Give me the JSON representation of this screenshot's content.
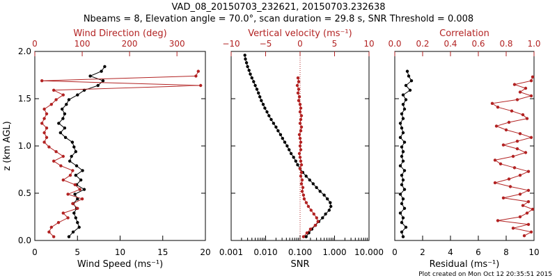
{
  "title_line1": "VAD_08_20150703_232621, 20150703.232638",
  "title_line2": "Nbeams = 8, Elevation angle = 70.0°, scan duration = 29.8 s, SNR Threshold = 0.008",
  "footer": "Plot created on Mon Oct 12 20:35:51 2015",
  "colors": {
    "black": "#000000",
    "red": "#b22222"
  },
  "chart_data": [
    {
      "type": "line",
      "panel": "wind",
      "title": "Wind Direction (deg)",
      "xlabel": "Wind Speed (ms⁻¹)",
      "ylabel": "z (km AGL)",
      "xlim": [
        0,
        20
      ],
      "xlim_top": [
        0,
        360
      ],
      "ylim": [
        0,
        2
      ],
      "xticks": [
        "0",
        "5",
        "10",
        "15",
        "20"
      ],
      "xticks_top": [
        "0",
        "100",
        "200",
        "300"
      ],
      "yticks": [
        "0.0",
        "0.5",
        "1.0",
        "1.5",
        "2.0"
      ],
      "series": [
        {
          "name": "Wind Speed",
          "axis": "bottom",
          "color": "black",
          "z": [
            0.04,
            0.09,
            0.14,
            0.19,
            0.24,
            0.29,
            0.34,
            0.39,
            0.44,
            0.49,
            0.54,
            0.59,
            0.64,
            0.69,
            0.74,
            0.79,
            0.84,
            0.89,
            0.94,
            0.99,
            1.04,
            1.09,
            1.14,
            1.19,
            1.24,
            1.29,
            1.34,
            1.39,
            1.44,
            1.49,
            1.54,
            1.59,
            1.64,
            1.69,
            1.74,
            1.79,
            1.84
          ],
          "values": [
            4.0,
            4.5,
            5.2,
            5.0,
            4.8,
            4.6,
            4.9,
            4.5,
            5.0,
            4.7,
            5.8,
            4.9,
            5.4,
            4.8,
            5.6,
            4.9,
            4.1,
            4.3,
            4.8,
            4.6,
            4.4,
            3.6,
            3.0,
            3.5,
            2.8,
            3.3,
            3.5,
            3.2,
            3.7,
            4.0,
            5.0,
            5.8,
            7.4,
            8.0,
            6.5,
            7.8,
            8.2
          ]
        },
        {
          "name": "Wind Direction",
          "axis": "top",
          "color": "red",
          "z": [
            0.04,
            0.09,
            0.14,
            0.19,
            0.24,
            0.29,
            0.34,
            0.39,
            0.44,
            0.49,
            0.54,
            0.59,
            0.64,
            0.69,
            0.74,
            0.79,
            0.84,
            0.89,
            0.94,
            0.99,
            1.04,
            1.09,
            1.14,
            1.19,
            1.24,
            1.29,
            1.34,
            1.39,
            1.44,
            1.49,
            1.54,
            1.59,
            1.64,
            1.69,
            1.74,
            1.79
          ],
          "values": [
            40,
            30,
            35,
            50,
            70,
            60,
            90,
            80,
            100,
            70,
            95,
            85,
            60,
            75,
            80,
            55,
            40,
            60,
            45,
            30,
            20,
            25,
            20,
            25,
            15,
            20,
            25,
            20,
            35,
            45,
            60,
            40,
            350,
            15,
            340,
            345
          ]
        }
      ]
    },
    {
      "type": "line",
      "panel": "snr",
      "title": "Vertical velocity (ms⁻¹)",
      "xlabel": "SNR",
      "xscale": "log",
      "xlim": [
        0.001,
        10
      ],
      "xlim_top": [
        -10,
        10
      ],
      "ylim": [
        0,
        2
      ],
      "xticks": [
        "0.001",
        "0.010",
        "0.100",
        "1.000",
        "10.000"
      ],
      "xticks_top": [
        "−10",
        "−5",
        "0",
        "5",
        "10"
      ],
      "series": [
        {
          "name": "SNR",
          "axis": "bottom",
          "color": "black",
          "z": [
            0.04,
            0.08,
            0.12,
            0.16,
            0.2,
            0.24,
            0.28,
            0.32,
            0.36,
            0.4,
            0.44,
            0.48,
            0.52,
            0.56,
            0.6,
            0.64,
            0.68,
            0.72,
            0.76,
            0.8,
            0.84,
            0.88,
            0.92,
            0.96,
            1.0,
            1.04,
            1.08,
            1.12,
            1.16,
            1.2,
            1.24,
            1.28,
            1.32,
            1.36,
            1.4,
            1.44,
            1.48,
            1.52,
            1.56,
            1.6,
            1.64,
            1.68,
            1.72,
            1.76,
            1.8,
            1.84,
            1.88,
            1.92,
            1.96
          ],
          "values": [
            0.15,
            0.18,
            0.22,
            0.28,
            0.35,
            0.45,
            0.55,
            0.7,
            0.78,
            0.75,
            0.62,
            0.5,
            0.38,
            0.3,
            0.24,
            0.19,
            0.15,
            0.12,
            0.1,
            0.085,
            0.075,
            0.065,
            0.055,
            0.048,
            0.042,
            0.036,
            0.031,
            0.027,
            0.023,
            0.02,
            0.017,
            0.0145,
            0.0125,
            0.011,
            0.0095,
            0.0085,
            0.0075,
            0.0068,
            0.0062,
            0.0056,
            0.005,
            0.0045,
            0.004,
            0.0036,
            0.0033,
            0.003,
            0.0028,
            0.0026,
            0.0025
          ]
        },
        {
          "name": "Vertical velocity",
          "axis": "top",
          "color": "red",
          "z": [
            0.04,
            0.08,
            0.12,
            0.16,
            0.2,
            0.24,
            0.28,
            0.32,
            0.36,
            0.4,
            0.44,
            0.48,
            0.52,
            0.56,
            0.6,
            0.64,
            0.68,
            0.72,
            0.76,
            0.8,
            0.84,
            0.88,
            0.92,
            0.96,
            1.0,
            1.04,
            1.08,
            1.12,
            1.16,
            1.2,
            1.24,
            1.28,
            1.32,
            1.36,
            1.4,
            1.44,
            1.48,
            1.52,
            1.56,
            1.6,
            1.64,
            1.68,
            1.72
          ],
          "values": [
            0.5,
            1.0,
            1.5,
            2.2,
            2.6,
            2.4,
            2.0,
            1.6,
            1.2,
            0.9,
            0.6,
            0.5,
            0.3,
            0.4,
            0.2,
            0.3,
            0.1,
            0.2,
            0.0,
            0.2,
            0.1,
            0.0,
            -0.1,
            0.1,
            0.0,
            0.1,
            0.0,
            -0.1,
            0.1,
            0.2,
            0.0,
            0.1,
            0.2,
            0.0,
            0.1,
            0.0,
            -0.2,
            -0.1,
            -0.3,
            -0.2,
            -0.4,
            -0.2,
            -0.3
          ]
        }
      ]
    },
    {
      "type": "line",
      "panel": "residual",
      "title": "Correlation",
      "xlabel": "Residual (ms⁻¹)",
      "xlim": [
        0,
        10
      ],
      "xlim_top": [
        0,
        1
      ],
      "ylim": [
        0,
        2
      ],
      "xticks": [
        "0",
        "2",
        "4",
        "6",
        "8",
        "10"
      ],
      "xticks_top": [
        "0.0",
        "0.2",
        "0.4",
        "0.6",
        "0.8",
        "1.0"
      ],
      "series": [
        {
          "name": "Residual",
          "axis": "bottom",
          "color": "black",
          "z": [
            0.04,
            0.09,
            0.14,
            0.19,
            0.24,
            0.29,
            0.34,
            0.39,
            0.44,
            0.49,
            0.54,
            0.59,
            0.64,
            0.69,
            0.74,
            0.79,
            0.84,
            0.89,
            0.94,
            0.99,
            1.04,
            1.09,
            1.14,
            1.19,
            1.24,
            1.29,
            1.34,
            1.39,
            1.44,
            1.49,
            1.54,
            1.59,
            1.64,
            1.69,
            1.74,
            1.79
          ],
          "values": [
            0.6,
            0.5,
            0.8,
            0.5,
            0.6,
            0.4,
            0.7,
            0.5,
            0.6,
            0.4,
            0.7,
            0.5,
            0.6,
            0.5,
            0.7,
            0.4,
            0.6,
            0.5,
            0.6,
            0.5,
            0.7,
            0.4,
            0.6,
            0.5,
            0.4,
            0.6,
            0.5,
            0.7,
            0.6,
            0.8,
            0.6,
            1.1,
            0.8,
            1.2,
            1.0,
            0.9
          ]
        },
        {
          "name": "Correlation",
          "axis": "top",
          "color": "red",
          "z": [
            0.05,
            0.09,
            0.13,
            0.17,
            0.21,
            0.25,
            0.29,
            0.33,
            0.37,
            0.41,
            0.45,
            0.49,
            0.53,
            0.57,
            0.61,
            0.65,
            0.69,
            0.73,
            0.77,
            0.81,
            0.85,
            0.89,
            0.93,
            0.97,
            1.01,
            1.05,
            1.09,
            1.13,
            1.17,
            1.21,
            1.25,
            1.29,
            1.33,
            1.37,
            1.41,
            1.45,
            1.49,
            1.53,
            1.57,
            1.61,
            1.65,
            1.69,
            1.73
          ],
          "values": [
            0.93,
            0.98,
            0.85,
            0.96,
            0.74,
            0.9,
            0.95,
            0.99,
            0.92,
            0.96,
            0.78,
            0.9,
            0.96,
            0.83,
            0.72,
            0.82,
            0.9,
            0.96,
            0.86,
            0.76,
            0.72,
            0.85,
            0.94,
            0.88,
            0.78,
            0.88,
            0.98,
            0.9,
            0.8,
            0.73,
            0.82,
            0.95,
            0.92,
            0.84,
            0.74,
            0.7,
            0.88,
            0.98,
            0.9,
            0.94,
            0.86,
            0.98,
            0.99
          ]
        }
      ]
    }
  ]
}
